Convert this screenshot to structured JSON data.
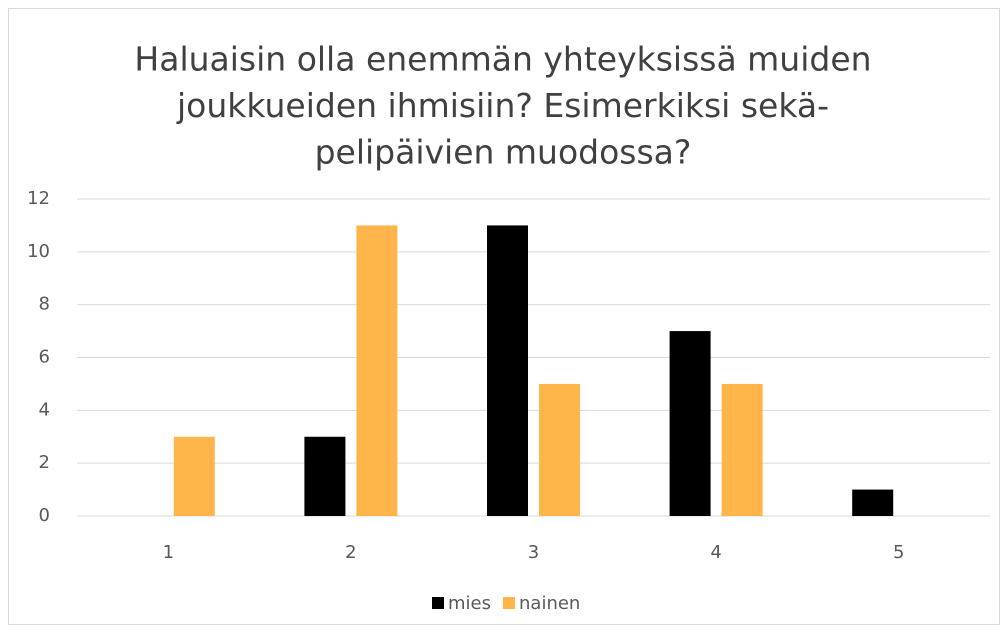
{
  "chart_data": {
    "type": "bar",
    "title": [
      "Haluaisin olla enemmän yhteyksissä muiden",
      "joukkueiden ihmisiin? Esimerkiksi sekä-",
      "pelipäivien muodossa?"
    ],
    "categories": [
      "1",
      "2",
      "3",
      "4",
      "5"
    ],
    "series": [
      {
        "name": "mies",
        "color": "#000000",
        "values": [
          0,
          3,
          11,
          7,
          1
        ]
      },
      {
        "name": "nainen",
        "color": "#ffb54a",
        "values": [
          3,
          11,
          5,
          5,
          0
        ]
      }
    ],
    "ylim": [
      0,
      12
    ],
    "yticks": [
      0,
      2,
      4,
      6,
      8,
      10,
      12
    ],
    "grid": true,
    "legend": "bottom"
  }
}
